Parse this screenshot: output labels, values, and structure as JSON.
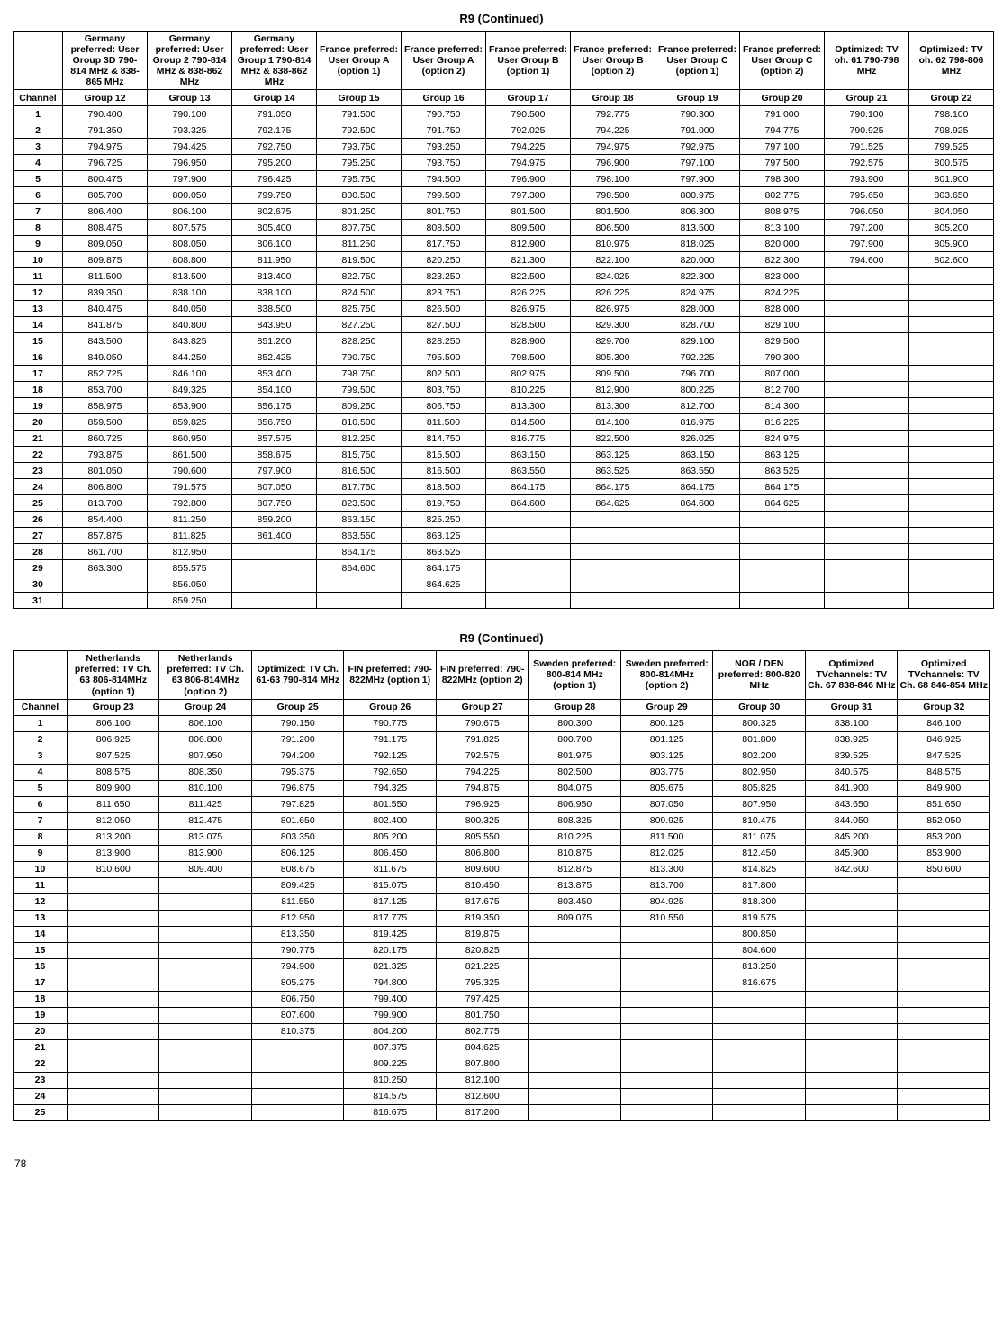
{
  "page_number": "78",
  "tables": [
    {
      "title": "R9 (Continued)",
      "headers": [
        "Germany preferred: User Group 3D 790-814 MHz & 838-865 MHz",
        "Germany preferred: User Group 2 790-814 MHz & 838-862 MHz",
        "Germany preferred: User Group 1 790-814 MHz & 838-862 MHz",
        "France preferred: User Group A (option 1)",
        "France preferred: User Group A (option 2)",
        "France preferred: User Group B (option 1)",
        "France preferred: User Group B (option 2)",
        "France preferred: User Group C (option 1)",
        "France preferred: User Group C (option 2)",
        "Optimized: TV oh. 61 790-798 MHz",
        "Optimized: TV oh. 62 798-806 MHz"
      ],
      "groups": [
        "Group 12",
        "Group 13",
        "Group 14",
        "Group 15",
        "Group 16",
        "Group 17",
        "Group 18",
        "Group 19",
        "Group 20",
        "Group 21",
        "Group 22"
      ],
      "channel_label": "Channel",
      "channels": [
        "1",
        "2",
        "3",
        "4",
        "5",
        "6",
        "7",
        "8",
        "9",
        "10",
        "11",
        "12",
        "13",
        "14",
        "15",
        "16",
        "17",
        "18",
        "19",
        "20",
        "21",
        "22",
        "23",
        "24",
        "25",
        "26",
        "27",
        "28",
        "29",
        "30",
        "31"
      ],
      "rows": [
        [
          "790.400",
          "790.100",
          "791.050",
          "791.500",
          "790.750",
          "790.500",
          "792.775",
          "790.300",
          "791.000",
          "790.100",
          "798.100"
        ],
        [
          "791.350",
          "793.325",
          "792.175",
          "792.500",
          "791.750",
          "792.025",
          "794.225",
          "791.000",
          "794.775",
          "790.925",
          "798.925"
        ],
        [
          "794.975",
          "794.425",
          "792.750",
          "793.750",
          "793.250",
          "794.225",
          "794.975",
          "792.975",
          "797.100",
          "791.525",
          "799.525"
        ],
        [
          "796.725",
          "796.950",
          "795.200",
          "795.250",
          "793.750",
          "794.975",
          "796.900",
          "797.100",
          "797.500",
          "792.575",
          "800.575"
        ],
        [
          "800.475",
          "797.900",
          "796.425",
          "795.750",
          "794.500",
          "796.900",
          "798.100",
          "797.900",
          "798.300",
          "793.900",
          "801.900"
        ],
        [
          "805.700",
          "800.050",
          "799.750",
          "800.500",
          "799.500",
          "797.300",
          "798.500",
          "800.975",
          "802.775",
          "795.650",
          "803.650"
        ],
        [
          "806.400",
          "806.100",
          "802.675",
          "801.250",
          "801.750",
          "801.500",
          "801.500",
          "806.300",
          "808.975",
          "796.050",
          "804.050"
        ],
        [
          "808.475",
          "807.575",
          "805.400",
          "807.750",
          "808.500",
          "809.500",
          "806.500",
          "813.500",
          "813.100",
          "797.200",
          "805.200"
        ],
        [
          "809.050",
          "808.050",
          "806.100",
          "811.250",
          "817.750",
          "812.900",
          "810.975",
          "818.025",
          "820.000",
          "797.900",
          "805.900"
        ],
        [
          "809.875",
          "808.800",
          "811.950",
          "819.500",
          "820.250",
          "821.300",
          "822.100",
          "820.000",
          "822.300",
          "794.600",
          "802.600"
        ],
        [
          "811.500",
          "813.500",
          "813.400",
          "822.750",
          "823.250",
          "822.500",
          "824.025",
          "822.300",
          "823.000",
          "",
          ""
        ],
        [
          "839.350",
          "838.100",
          "838.100",
          "824.500",
          "823.750",
          "826.225",
          "826.225",
          "824.975",
          "824.225",
          "",
          ""
        ],
        [
          "840.475",
          "840.050",
          "838.500",
          "825.750",
          "826.500",
          "826.975",
          "826.975",
          "828.000",
          "828.000",
          "",
          ""
        ],
        [
          "841.875",
          "840.800",
          "843.950",
          "827.250",
          "827.500",
          "828.500",
          "829.300",
          "828.700",
          "829.100",
          "",
          ""
        ],
        [
          "843.500",
          "843.825",
          "851.200",
          "828.250",
          "828.250",
          "828.900",
          "829.700",
          "829.100",
          "829.500",
          "",
          ""
        ],
        [
          "849.050",
          "844.250",
          "852.425",
          "790.750",
          "795.500",
          "798.500",
          "805.300",
          "792.225",
          "790.300",
          "",
          ""
        ],
        [
          "852.725",
          "846.100",
          "853.400",
          "798.750",
          "802.500",
          "802.975",
          "809.500",
          "796.700",
          "807.000",
          "",
          ""
        ],
        [
          "853.700",
          "849.325",
          "854.100",
          "799.500",
          "803.750",
          "810.225",
          "812.900",
          "800.225",
          "812.700",
          "",
          ""
        ],
        [
          "858.975",
          "853.900",
          "856.175",
          "809.250",
          "806.750",
          "813.300",
          "813.300",
          "812.700",
          "814.300",
          "",
          ""
        ],
        [
          "859.500",
          "859.825",
          "856.750",
          "810.500",
          "811.500",
          "814.500",
          "814.100",
          "816.975",
          "816.225",
          "",
          ""
        ],
        [
          "860.725",
          "860.950",
          "857.575",
          "812.250",
          "814.750",
          "816.775",
          "822.500",
          "826.025",
          "824.975",
          "",
          ""
        ],
        [
          "793.875",
          "861.500",
          "858.675",
          "815.750",
          "815.500",
          "863.150",
          "863.125",
          "863.150",
          "863.125",
          "",
          ""
        ],
        [
          "801.050",
          "790.600",
          "797.900",
          "816.500",
          "816.500",
          "863.550",
          "863.525",
          "863.550",
          "863.525",
          "",
          ""
        ],
        [
          "806.800",
          "791.575",
          "807.050",
          "817.750",
          "818.500",
          "864.175",
          "864.175",
          "864.175",
          "864.175",
          "",
          ""
        ],
        [
          "813.700",
          "792.800",
          "807.750",
          "823.500",
          "819.750",
          "864.600",
          "864.625",
          "864.600",
          "864.625",
          "",
          ""
        ],
        [
          "854.400",
          "811.250",
          "859.200",
          "863.150",
          "825.250",
          "",
          "",
          "",
          "",
          "",
          ""
        ],
        [
          "857.875",
          "811.825",
          "861.400",
          "863.550",
          "863.125",
          "",
          "",
          "",
          "",
          "",
          ""
        ],
        [
          "861.700",
          "812.950",
          "",
          "864.175",
          "863.525",
          "",
          "",
          "",
          "",
          "",
          ""
        ],
        [
          "863.300",
          "855.575",
          "",
          "864.600",
          "864.175",
          "",
          "",
          "",
          "",
          "",
          ""
        ],
        [
          "",
          "856.050",
          "",
          "",
          "864.625",
          "",
          "",
          "",
          "",
          "",
          ""
        ],
        [
          "",
          "859.250",
          "",
          "",
          "",
          "",
          "",
          "",
          "",
          "",
          ""
        ]
      ]
    },
    {
      "title": "R9 (Continued)",
      "headers": [
        "Netherlands preferred: TV Ch. 63 806-814MHz (option 1)",
        "Netherlands preferred: TV Ch. 63 806-814MHz (option 2)",
        "Optimized: TV Ch. 61-63 790-814 MHz",
        "FIN preferred: 790-822MHz (option 1)",
        "FIN preferred: 790-822MHz (option 2)",
        "Sweden preferred: 800-814 MHz (option 1)",
        "Sweden preferred: 800-814MHz (option 2)",
        "NOR / DEN preferred: 800-820 MHz",
        "Optimized TVchannels: TV Ch. 67 838-846 MHz",
        "Optimized TVchannels: TV Ch. 68 846-854 MHz"
      ],
      "groups": [
        "Group 23",
        "Group 24",
        "Group 25",
        "Group 26",
        "Group 27",
        "Group 28",
        "Group 29",
        "Group 30",
        "Group 31",
        "Group 32"
      ],
      "channel_label": "Channel",
      "channels": [
        "1",
        "2",
        "3",
        "4",
        "5",
        "6",
        "7",
        "8",
        "9",
        "10",
        "11",
        "12",
        "13",
        "14",
        "15",
        "16",
        "17",
        "18",
        "19",
        "20",
        "21",
        "22",
        "23",
        "24",
        "25"
      ],
      "rows": [
        [
          "806.100",
          "806.100",
          "790.150",
          "790.775",
          "790.675",
          "800.300",
          "800.125",
          "800.325",
          "838.100",
          "846.100"
        ],
        [
          "806.925",
          "806.800",
          "791.200",
          "791.175",
          "791.825",
          "800.700",
          "801.125",
          "801.800",
          "838.925",
          "846.925"
        ],
        [
          "807.525",
          "807.950",
          "794.200",
          "792.125",
          "792.575",
          "801.975",
          "803.125",
          "802.200",
          "839.525",
          "847.525"
        ],
        [
          "808.575",
          "808.350",
          "795.375",
          "792.650",
          "794.225",
          "802.500",
          "803.775",
          "802.950",
          "840.575",
          "848.575"
        ],
        [
          "809.900",
          "810.100",
          "796.875",
          "794.325",
          "794.875",
          "804.075",
          "805.675",
          "805.825",
          "841.900",
          "849.900"
        ],
        [
          "811.650",
          "811.425",
          "797.825",
          "801.550",
          "796.925",
          "806.950",
          "807.050",
          "807.950",
          "843.650",
          "851.650"
        ],
        [
          "812.050",
          "812.475",
          "801.650",
          "802.400",
          "800.325",
          "808.325",
          "809.925",
          "810.475",
          "844.050",
          "852.050"
        ],
        [
          "813.200",
          "813.075",
          "803.350",
          "805.200",
          "805.550",
          "810.225",
          "811.500",
          "811.075",
          "845.200",
          "853.200"
        ],
        [
          "813.900",
          "813.900",
          "806.125",
          "806.450",
          "806.800",
          "810.875",
          "812.025",
          "812.450",
          "845.900",
          "853.900"
        ],
        [
          "810.600",
          "809.400",
          "808.675",
          "811.675",
          "809.600",
          "812.875",
          "813.300",
          "814.825",
          "842.600",
          "850.600"
        ],
        [
          "",
          "",
          "809.425",
          "815.075",
          "810.450",
          "813.875",
          "813.700",
          "817.800",
          "",
          ""
        ],
        [
          "",
          "",
          "811.550",
          "817.125",
          "817.675",
          "803.450",
          "804.925",
          "818.300",
          "",
          ""
        ],
        [
          "",
          "",
          "812.950",
          "817.775",
          "819.350",
          "809.075",
          "810.550",
          "819.575",
          "",
          ""
        ],
        [
          "",
          "",
          "813.350",
          "819.425",
          "819.875",
          "",
          "",
          "800.850",
          "",
          ""
        ],
        [
          "",
          "",
          "790.775",
          "820.175",
          "820.825",
          "",
          "",
          "804.600",
          "",
          ""
        ],
        [
          "",
          "",
          "794.900",
          "821.325",
          "821.225",
          "",
          "",
          "813.250",
          "",
          ""
        ],
        [
          "",
          "",
          "805.275",
          "794.800",
          "795.325",
          "",
          "",
          "816.675",
          "",
          ""
        ],
        [
          "",
          "",
          "806.750",
          "799.400",
          "797.425",
          "",
          "",
          "",
          "",
          ""
        ],
        [
          "",
          "",
          "807.600",
          "799.900",
          "801.750",
          "",
          "",
          "",
          "",
          ""
        ],
        [
          "",
          "",
          "810.375",
          "804.200",
          "802.775",
          "",
          "",
          "",
          "",
          ""
        ],
        [
          "",
          "",
          "",
          "807.375",
          "804.625",
          "",
          "",
          "",
          "",
          ""
        ],
        [
          "",
          "",
          "",
          "809.225",
          "807.800",
          "",
          "",
          "",
          "",
          ""
        ],
        [
          "",
          "",
          "",
          "810.250",
          "812.100",
          "",
          "",
          "",
          "",
          ""
        ],
        [
          "",
          "",
          "",
          "814.575",
          "812.600",
          "",
          "",
          "",
          "",
          ""
        ],
        [
          "",
          "",
          "",
          "816.675",
          "817.200",
          "",
          "",
          "",
          "",
          ""
        ]
      ]
    }
  ]
}
